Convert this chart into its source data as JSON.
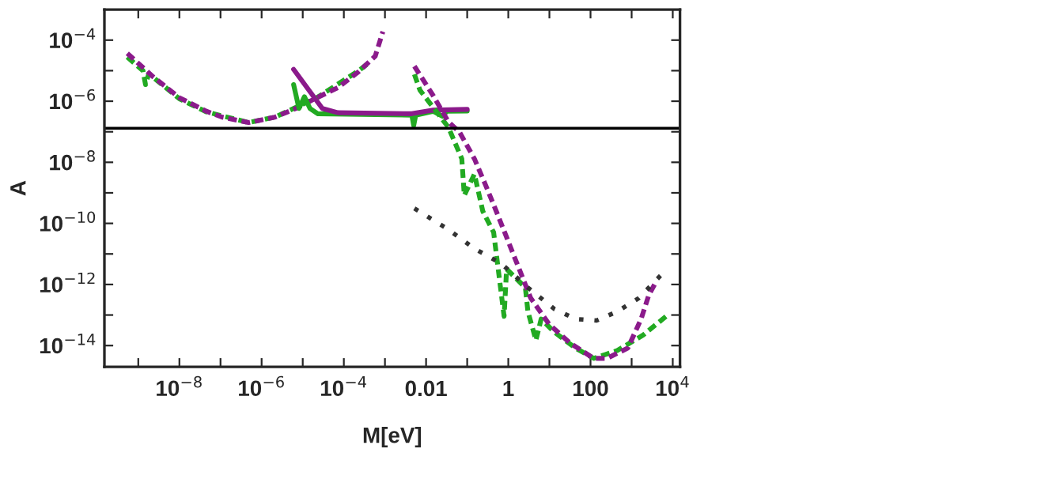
{
  "chart_data": {
    "type": "line",
    "xlabel": "M[eV]",
    "ylabel": "A",
    "log": "xy",
    "grid": false,
    "legend": false,
    "xlim": [
      1.5e-10,
      15000.0
    ],
    "ylim": [
      2e-15,
      0.001
    ],
    "xticks": [
      {
        "value": 1e-09,
        "label": null
      },
      {
        "value": 1e-08,
        "label": "10$^{−8}$"
      },
      {
        "value": 1e-07,
        "label": null
      },
      {
        "value": 1e-06,
        "label": "10$^{−6}$"
      },
      {
        "value": 1e-05,
        "label": null
      },
      {
        "value": 0.0001,
        "label": "10$^{−4}$"
      },
      {
        "value": 0.001,
        "label": null
      },
      {
        "value": 0.01,
        "label": "0.01"
      },
      {
        "value": 0.1,
        "label": null
      },
      {
        "value": 1,
        "label": "1"
      },
      {
        "value": 10,
        "label": null
      },
      {
        "value": 100,
        "label": "100"
      },
      {
        "value": 1000,
        "label": null
      },
      {
        "value": 10000.0,
        "label": "10$^{4}$"
      }
    ],
    "yticks": [
      {
        "value": 1e-14,
        "label": "10$^{−14}$"
      },
      {
        "value": 1e-13,
        "label": null
      },
      {
        "value": 1e-12,
        "label": "10$^{−12}$"
      },
      {
        "value": 1e-11,
        "label": null
      },
      {
        "value": 1e-10,
        "label": "10$^{−10}$"
      },
      {
        "value": 1e-09,
        "label": null
      },
      {
        "value": 1e-08,
        "label": "10$^{−8}$"
      },
      {
        "value": 1e-07,
        "label": null
      },
      {
        "value": 1e-06,
        "label": "10$^{−6}$"
      },
      {
        "value": 1e-05,
        "label": null
      },
      {
        "value": 0.0001,
        "label": "10$^{−4}$"
      }
    ],
    "ref_lines": [
      {
        "axis": "y",
        "value": 1.3e-07,
        "color": "#000000",
        "line_style": "solid"
      }
    ],
    "series": [
      {
        "color": "#22aa22",
        "line_style": "dashed",
        "x": [
          5.4e-10,
          1.3e-09,
          1.5e-09,
          1.8e-09,
          1e-08,
          4.5e-08,
          4.8e-07,
          2.1e-06,
          2.2e-05,
          0.00023,
          0.00036
        ],
        "values": [
          2.8e-05,
          1e-05,
          3.5e-06,
          7.9e-06,
          1.2e-06,
          4.5e-07,
          2e-07,
          3e-07,
          1.3e-06,
          1e-05,
          1.6e-05
        ]
      },
      {
        "color": "#8b1a8b",
        "line_style": "dashed",
        "x": [
          5.4e-10,
          2.3e-09,
          1e-08,
          4.5e-08,
          1.1e-07,
          4.8e-07,
          2.1e-06,
          6.8e-06,
          2.2e-05,
          7.2e-05,
          0.00023,
          0.00058,
          0.00089
        ],
        "values": [
          3.7e-05,
          6.3e-06,
          1.3e-06,
          4.7e-07,
          3e-07,
          2e-07,
          3e-07,
          5.8e-07,
          1.3e-06,
          2.8e-06,
          9.3e-06,
          3e-05,
          0.00019
        ]
      },
      {
        "color": "#22aa22",
        "line_style": "solid",
        "x": [
          6e-06,
          8.1e-06,
          1.1e-05,
          1.5e-05,
          2.3e-05,
          0.0045,
          0.005,
          0.0056,
          0.015,
          0.025,
          0.032,
          0.1
        ],
        "values": [
          3.5e-06,
          5.8e-07,
          1.4e-06,
          5.8e-07,
          3.9e-07,
          3.5e-07,
          1.6e-07,
          3.5e-07,
          4.7e-07,
          3.2e-07,
          4.7e-07,
          4.8e-07
        ]
      },
      {
        "color": "#8b1a8b",
        "line_style": "solid",
        "x": [
          6e-06,
          3e-05,
          7.2e-05,
          0.0045,
          0.015,
          0.1
        ],
        "values": [
          1.1e-05,
          5.8e-07,
          4.2e-07,
          3.9e-07,
          5.1e-07,
          5.4e-07
        ]
      },
      {
        "color": "#22aa22",
        "line_style": "dashed",
        "x": [
          0.0052,
          0.0071,
          0.035,
          0.074,
          0.085,
          0.15,
          0.24,
          0.44,
          0.79,
          0.91,
          2.6,
          3.0,
          4.7,
          6.3,
          13,
          43,
          120,
          450,
          1900,
          7400
        ],
        "values": [
          7.6e-06,
          2.3e-06,
          1.4e-07,
          1.3e-08,
          8.3e-10,
          4.1e-09,
          2.5e-10,
          5.1e-11,
          9.1e-14,
          3.2e-12,
          7.9e-13,
          1.3e-13,
          1.5e-14,
          7.4e-14,
          2.8e-14,
          8.3e-15,
          3.8e-15,
          6.9e-15,
          2.2e-14,
          9.8e-14
        ]
      },
      {
        "color": "#8b1a8b",
        "line_style": "dashed",
        "x": [
          0.0052,
          0.015,
          0.035,
          0.065,
          0.15,
          0.28,
          0.51,
          0.91,
          3.5,
          9.8,
          32,
          120,
          250,
          810,
          1700,
          2600,
          4000
        ],
        "values": [
          1.4e-05,
          1.5e-06,
          2.1e-07,
          9.8e-08,
          1.3e-08,
          1.8e-09,
          2.5e-10,
          3.5e-11,
          3.6e-13,
          5e-14,
          1.2e-14,
          3.8e-15,
          3.8e-15,
          8.3e-15,
          7.4e-14,
          4.4e-13,
          1.3e-12
        ]
      },
      {
        "color": "#333333",
        "line_style": "dotted",
        "x": [
          0.0052,
          0.035,
          0.15,
          0.68,
          3.0,
          13,
          43,
          140,
          450,
          1500,
          5500
        ],
        "values": [
          3.1e-10,
          6.3e-11,
          1.5e-11,
          4.8e-12,
          7.9e-13,
          1.6e-13,
          7.4e-14,
          6.6e-14,
          1.3e-13,
          3.6e-13,
          2.2e-12
        ]
      }
    ]
  }
}
